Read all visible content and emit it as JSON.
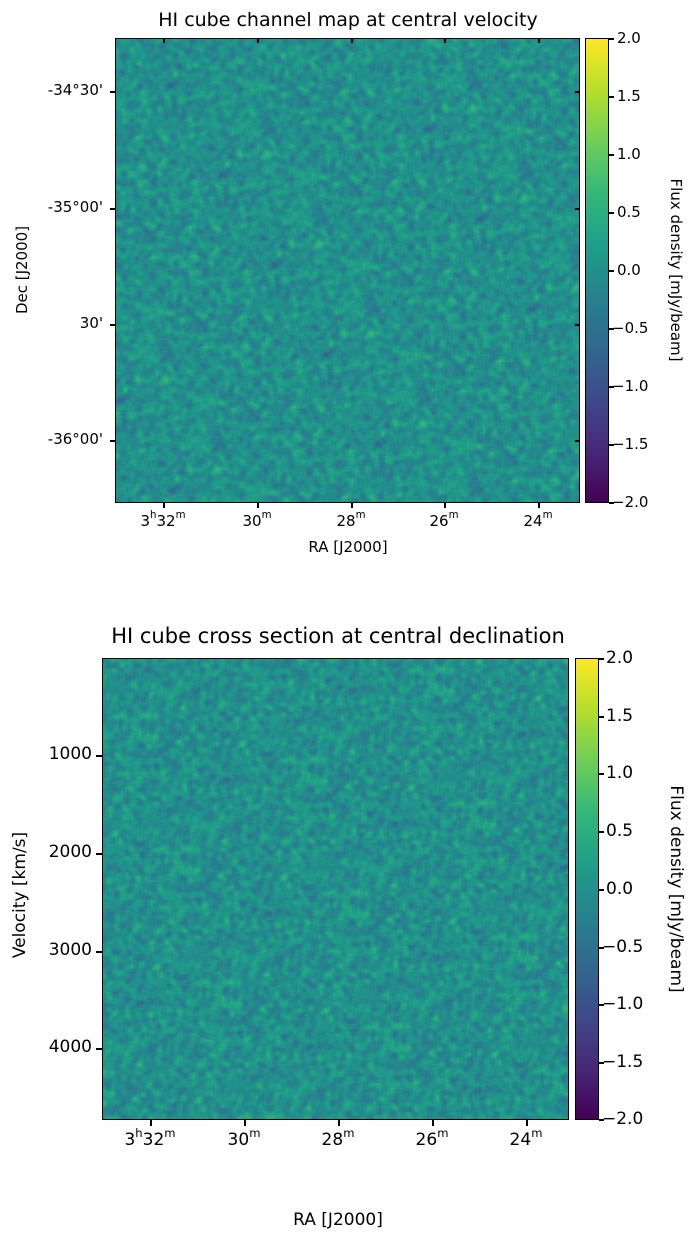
{
  "chart_data": [
    {
      "type": "heatmap",
      "title": "HI cube channel map at central velocity",
      "xlabel": "RA [J2000]",
      "ylabel": "Dec [J2000]",
      "x_ticks": [
        {
          "main": "3",
          "sup1": "h",
          "rest": "32",
          "sup2": "m"
        },
        {
          "main": "",
          "sup1": "",
          "rest": "30",
          "sup2": "m"
        },
        {
          "main": "",
          "sup1": "",
          "rest": "28",
          "sup2": "m"
        },
        {
          "main": "",
          "sup1": "",
          "rest": "26",
          "sup2": "m"
        },
        {
          "main": "",
          "sup1": "",
          "rest": "24",
          "sup2": "m"
        }
      ],
      "y_ticks": [
        "-34°30'",
        "-35°00'",
        "30'",
        "-36°00'"
      ],
      "colorbar": {
        "label": "Flux density [mJy/beam]",
        "range": [
          -2.0,
          2.0
        ],
        "ticks": [
          "2.0",
          "1.5",
          "1.0",
          "0.5",
          "0.0",
          "−0.5",
          "−1.0",
          "−1.5",
          "−2.0"
        ],
        "colormap": "viridis"
      },
      "noise_std": 0.35
    },
    {
      "type": "heatmap",
      "title": "HI cube cross section at central declination",
      "xlabel": "RA [J2000]",
      "ylabel": "Velocity [km/s]",
      "x_ticks": [
        {
          "main": "3",
          "sup1": "h",
          "rest": "32",
          "sup2": "m"
        },
        {
          "main": "",
          "sup1": "",
          "rest": "30",
          "sup2": "m"
        },
        {
          "main": "",
          "sup1": "",
          "rest": "28",
          "sup2": "m"
        },
        {
          "main": "",
          "sup1": "",
          "rest": "26",
          "sup2": "m"
        },
        {
          "main": "",
          "sup1": "",
          "rest": "24",
          "sup2": "m"
        }
      ],
      "y_ticks": [
        "1000",
        "2000",
        "3000",
        "4000"
      ],
      "colorbar": {
        "label": "Flux density [mJy/beam]",
        "range": [
          -2.0,
          2.0
        ],
        "ticks": [
          "2.0",
          "1.5",
          "1.0",
          "0.5",
          "0.0",
          "−0.5",
          "−1.0",
          "−1.5",
          "−2.0"
        ],
        "colormap": "viridis"
      },
      "noise_std": 0.35
    }
  ]
}
